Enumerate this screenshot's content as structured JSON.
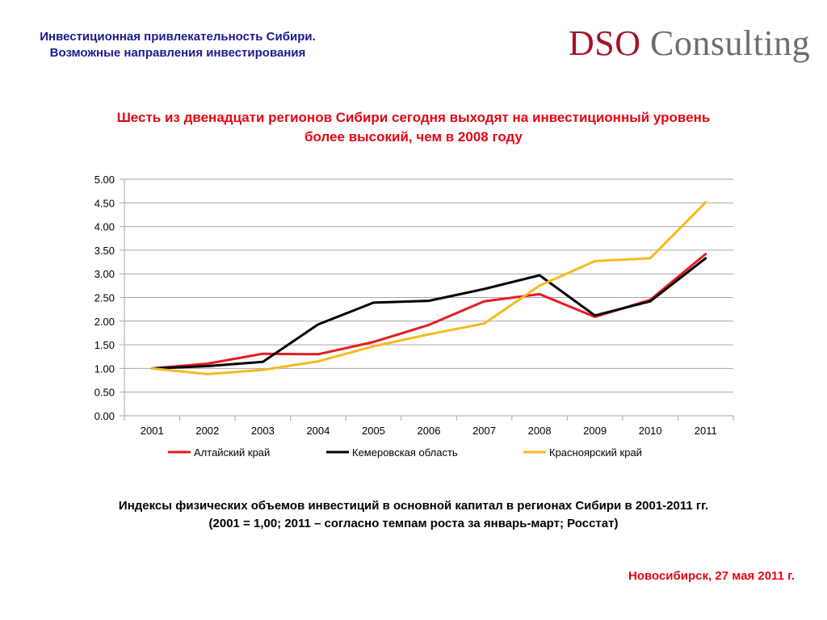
{
  "header": {
    "line1": "Инвестиционная привлекательность Сибири.",
    "line2": "Возможные направления инвестирования"
  },
  "logo": {
    "part1": "DSO",
    "part2": "Consulting"
  },
  "headline": {
    "line1": "Шесть из двенадцати регионов Сибири сегодня выходят на инвестиционный уровень",
    "line2": "более высокий, чем в 2008 году"
  },
  "caption": {
    "line1": "Индексы физических объемов инвестиций в основной капитал в регионах Сибири в 2001-2011 гг.",
    "line2": "(2001 = 1,00; 2011 – согласно темпам роста за январь-март; Росстат)"
  },
  "footer": {
    "text": "Новосибирск, 27 мая 2011 г."
  },
  "colors": {
    "header": "#1a1a8c",
    "accent": "#e30613",
    "logo_dso": "#a6112b",
    "logo_consulting": "#6d6d6d",
    "grid": "#a6a6a6"
  },
  "chart_data": {
    "type": "line",
    "title": "",
    "xlabel": "",
    "ylabel": "",
    "categories": [
      "2001",
      "2002",
      "2003",
      "2004",
      "2005",
      "2006",
      "2007",
      "2008",
      "2009",
      "2010",
      "2011"
    ],
    "ylim": [
      0,
      5
    ],
    "yticks": [
      "0.00",
      "0.50",
      "1.00",
      "1.50",
      "2.00",
      "2.50",
      "3.00",
      "3.50",
      "4.00",
      "4.50",
      "5.00"
    ],
    "grid": true,
    "legend_position": "bottom",
    "series": [
      {
        "name": "Алтайский край",
        "color": "#e31b23",
        "values": [
          1.0,
          1.1,
          1.31,
          1.3,
          1.56,
          1.92,
          2.42,
          2.57,
          2.09,
          2.45,
          3.42
        ]
      },
      {
        "name": "Кемеровская область",
        "color": "#000000",
        "values": [
          1.0,
          1.05,
          1.14,
          1.93,
          2.39,
          2.43,
          2.68,
          2.97,
          2.12,
          2.42,
          3.33
        ]
      },
      {
        "name": "Красноярский край",
        "color": "#f5b920",
        "values": [
          1.0,
          0.88,
          0.97,
          1.15,
          1.47,
          1.72,
          1.95,
          2.75,
          3.27,
          3.33,
          4.51
        ]
      }
    ]
  }
}
